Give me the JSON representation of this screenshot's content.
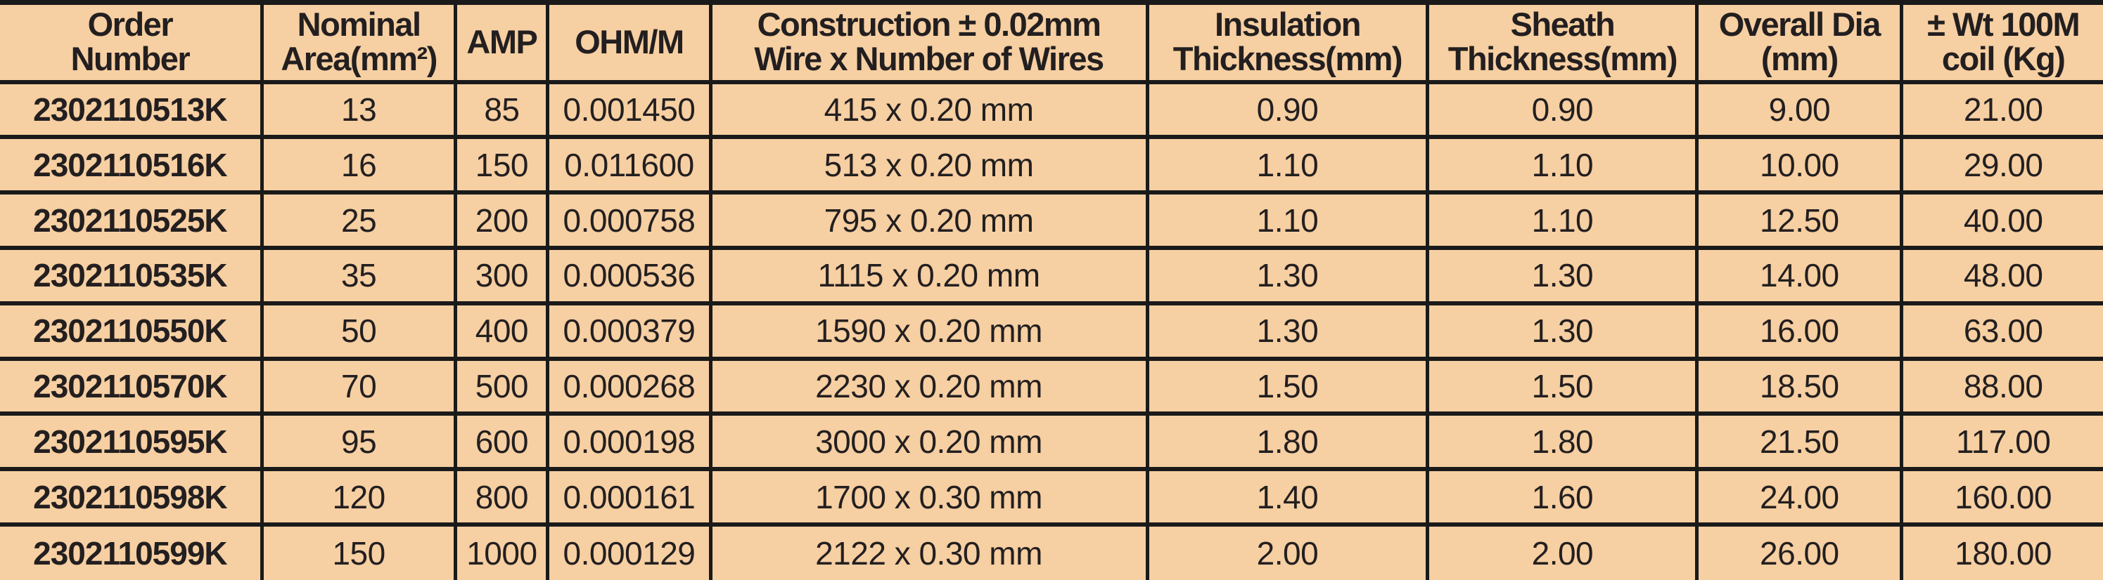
{
  "colors": {
    "background": "#f6cfa2",
    "grid_line": "#1a1a1a",
    "text": "#231f20"
  },
  "table": {
    "title": "cable-specification-table",
    "columns": [
      {
        "key": "order_number",
        "label": "Order\nNumber",
        "width_pct": 12.45
      },
      {
        "key": "nominal_area",
        "label": "Nominal\nArea(mm²)",
        "width_pct": 9.22
      },
      {
        "key": "amp",
        "label": "AMP",
        "width_pct": 4.38
      },
      {
        "key": "ohm_per_m",
        "label": "OHM/M",
        "width_pct": 7.73
      },
      {
        "key": "construction",
        "label": "Construction ± 0.02mm\nWire x Number of Wires",
        "width_pct": 20.77
      },
      {
        "key": "insulation_thickness",
        "label": "Insulation\nThickness(mm)",
        "width_pct": 13.34
      },
      {
        "key": "sheath_thickness",
        "label": "Sheath\nThickness(mm)",
        "width_pct": 12.81
      },
      {
        "key": "overall_dia",
        "label": "Overall Dia\n(mm)",
        "width_pct": 9.73
      },
      {
        "key": "wt_100m_coil",
        "label": "± Wt 100M\ncoil (Kg)",
        "width_pct": 9.57
      }
    ],
    "rows": [
      {
        "cells": [
          "2302110513K",
          "13",
          "85",
          "0.001450",
          "415 x 0.20 mm",
          "0.90",
          "0.90",
          "9.00",
          "21.00"
        ]
      },
      {
        "cells": [
          "2302110516K",
          "16",
          "150",
          "0.011600",
          "513 x 0.20 mm",
          "1.10",
          "1.10",
          "10.00",
          "29.00"
        ]
      },
      {
        "cells": [
          "2302110525K",
          "25",
          "200",
          "0.000758",
          "795 x 0.20 mm",
          "1.10",
          "1.10",
          "12.50",
          "40.00"
        ]
      },
      {
        "cells": [
          "2302110535K",
          "35",
          "300",
          "0.000536",
          "1115 x 0.20 mm",
          "1.30",
          "1.30",
          "14.00",
          "48.00"
        ]
      },
      {
        "cells": [
          "2302110550K",
          "50",
          "400",
          "0.000379",
          "1590 x 0.20 mm",
          "1.30",
          "1.30",
          "16.00",
          "63.00"
        ]
      },
      {
        "cells": [
          "2302110570K",
          "70",
          "500",
          "0.000268",
          "2230 x 0.20 mm",
          "1.50",
          "1.50",
          "18.50",
          "88.00"
        ]
      },
      {
        "cells": [
          "2302110595K",
          "95",
          "600",
          "0.000198",
          "3000 x 0.20 mm",
          "1.80",
          "1.80",
          "21.50",
          "117.00"
        ]
      },
      {
        "cells": [
          "2302110598K",
          "120",
          "800",
          "0.000161",
          "1700 x 0.30 mm",
          "1.40",
          "1.60",
          "24.00",
          "160.00"
        ]
      },
      {
        "cells": [
          "2302110599K",
          "150",
          "1000",
          "0.000129",
          "2122 x 0.30 mm",
          "2.00",
          "2.00",
          "26.00",
          "180.00"
        ]
      }
    ]
  }
}
